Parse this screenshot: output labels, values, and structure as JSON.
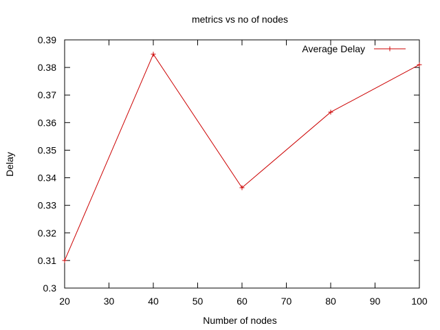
{
  "chart_data": {
    "type": "line",
    "title": "metrics vs no of nodes",
    "xlabel": "Number of nodes",
    "ylabel": "Delay",
    "xlim": [
      20,
      100
    ],
    "ylim": [
      0.3,
      0.39
    ],
    "xticks": [
      20,
      30,
      40,
      50,
      60,
      70,
      80,
      90,
      100
    ],
    "yticks": [
      0.3,
      0.31,
      0.32,
      0.33,
      0.34,
      0.35,
      0.36,
      0.37,
      0.38,
      0.39
    ],
    "xtick_labels": [
      "20",
      "30",
      "40",
      "50",
      "60",
      "70",
      "80",
      "90",
      "100"
    ],
    "ytick_labels": [
      "0.3",
      "0.31",
      "0.32",
      "0.33",
      "0.34",
      "0.35",
      "0.36",
      "0.37",
      "0.38",
      "0.39"
    ],
    "grid": false,
    "legend_position": "top-right",
    "series": [
      {
        "name": "Average Delay",
        "color": "#cc0000",
        "marker": "plus",
        "x": [
          20,
          40,
          60,
          80,
          100
        ],
        "y": [
          0.31,
          0.3848,
          0.3364,
          0.3638,
          0.381
        ]
      }
    ]
  }
}
